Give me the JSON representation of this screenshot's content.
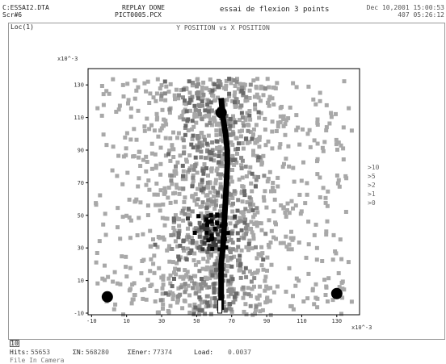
{
  "header": {
    "file": "C:ESSAI2.DTA",
    "screen": "Scr#6",
    "status": "REPLAY DONE",
    "picture": "PICT0005.PCX",
    "experiment": "essai de flexion 3 points",
    "datetime": "Dec 10,2001 15:00:53",
    "counter": "407 05:26:12"
  },
  "loc_label": "Loc(1)",
  "legend": [
    ">10",
    ">5",
    ">2",
    ">1",
    ">0"
  ],
  "footer": {
    "box_value": "10",
    "hits_label": "Hits:",
    "hits_value": "55653",
    "sum_n_label": "ΣN:",
    "sum_n_value": "568280",
    "sum_ener_label": "ΣEner:",
    "sum_ener_value": "77374",
    "load_label": "Load:",
    "load_value": "0.0037",
    "cut_off": "File In Camera"
  },
  "colors": {
    "bin_gt0": "#a8a8a8",
    "bin_gt1": "#8c8c8c",
    "bin_gt2": "#6a6a6a",
    "bin_gt5": "#3a3a3a",
    "bin_gt10": "#000000",
    "crack": "#000000"
  },
  "chart_data": {
    "type": "heatmap",
    "title": "Y POSITION vs X POSITION",
    "xlabel": "",
    "ylabel": "",
    "x_scale_label": "x10^-3",
    "y_scale_label": "x10^-3",
    "xlim": [
      -12,
      143
    ],
    "ylim": [
      -11,
      140
    ],
    "xticks": [
      -10,
      10,
      30,
      50,
      70,
      90,
      110,
      130
    ],
    "yticks": [
      -10,
      10,
      30,
      50,
      70,
      90,
      110,
      130
    ],
    "grid": false,
    "legend_position": "right",
    "cluster": {
      "x_center": 60,
      "x_spread": 22,
      "y_min": -10,
      "y_max": 135,
      "bins_per_level": [
        1100,
        260,
        160,
        45,
        25
      ]
    },
    "crack_path": [
      [
        64,
        -8
      ],
      [
        64,
        0
      ],
      [
        64,
        10
      ],
      [
        64,
        20
      ],
      [
        65,
        30
      ],
      [
        65.5,
        40
      ],
      [
        66,
        50
      ],
      [
        66.5,
        60
      ],
      [
        67,
        70
      ],
      [
        67.5,
        80
      ],
      [
        67.5,
        90
      ],
      [
        66.5,
        100
      ],
      [
        65,
        110
      ],
      [
        64,
        122
      ]
    ],
    "support_points": [
      [
        -1,
        0
      ],
      [
        130,
        2
      ]
    ],
    "loading_point": [
      64,
      113
    ]
  }
}
